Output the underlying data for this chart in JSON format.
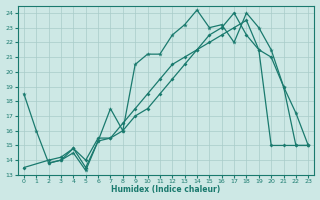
{
  "bg_color": "#cde8e5",
  "line_color": "#1a7a6e",
  "grid_color": "#a8ccc9",
  "xlabel": "Humidex (Indice chaleur)",
  "xlim": [
    -0.5,
    23.5
  ],
  "ylim": [
    13,
    24.5
  ],
  "yticks": [
    13,
    14,
    15,
    16,
    17,
    18,
    19,
    20,
    21,
    22,
    23,
    24
  ],
  "xticks": [
    0,
    1,
    2,
    3,
    4,
    5,
    6,
    7,
    8,
    9,
    10,
    11,
    12,
    13,
    14,
    15,
    16,
    17,
    18,
    19,
    20,
    21,
    22,
    23
  ],
  "line1_x": [
    0,
    1,
    2,
    3,
    4,
    5,
    6,
    7,
    8,
    9,
    10,
    11,
    12,
    13,
    14,
    15,
    16,
    17,
    18,
    19,
    20,
    21,
    22,
    23
  ],
  "line1_y": [
    18.5,
    16.0,
    13.8,
    14.0,
    14.5,
    13.3,
    15.3,
    17.5,
    16.0,
    20.5,
    21.2,
    21.2,
    22.5,
    23.2,
    24.2,
    23.0,
    23.2,
    22.0,
    24.0,
    23.0,
    21.5,
    19.0,
    17.2,
    15.0
  ],
  "line2_x": [
    0,
    2,
    3,
    4,
    5,
    6,
    7,
    8,
    9,
    10,
    11,
    12,
    13,
    14,
    15,
    16,
    17,
    18,
    19,
    20,
    21,
    22,
    23
  ],
  "line2_y": [
    13.5,
    14.0,
    14.2,
    14.8,
    14.0,
    15.5,
    15.5,
    16.5,
    17.5,
    18.5,
    19.5,
    20.5,
    21.0,
    21.5,
    22.0,
    22.5,
    23.0,
    23.5,
    21.5,
    15.0,
    15.0,
    15.0,
    15.0
  ],
  "line3_x": [
    2,
    3,
    4,
    5,
    6,
    7,
    8,
    9,
    10,
    11,
    12,
    13,
    14,
    15,
    16,
    17,
    18,
    19,
    20,
    21,
    22,
    23
  ],
  "line3_y": [
    13.8,
    14.0,
    14.8,
    13.5,
    15.3,
    15.5,
    16.0,
    17.0,
    17.5,
    18.5,
    19.5,
    20.5,
    21.5,
    22.5,
    23.0,
    24.0,
    22.5,
    21.5,
    21.0,
    19.0,
    15.0,
    15.0
  ]
}
